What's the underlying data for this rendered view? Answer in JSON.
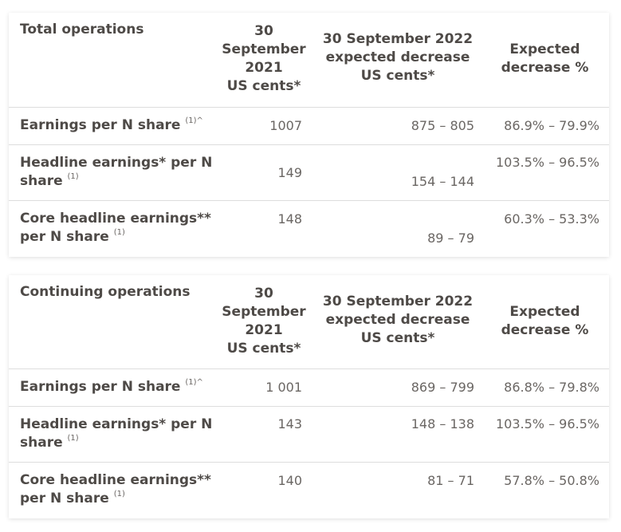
{
  "tables": [
    {
      "heading": "Total operations",
      "col_2021": [
        "30",
        "September",
        "2021",
        "US cents*"
      ],
      "col_2022": [
        "30 September 2022",
        "expected decrease",
        "US cents*"
      ],
      "col_pct": [
        "Expected",
        "decrease %"
      ],
      "rows": [
        {
          "label_l1": "Earnings per N share",
          "label_l2": "",
          "sup": "(1)^",
          "v2021": "1007",
          "v2022": "875 – 805",
          "pct": "86.9% – 79.9%"
        },
        {
          "label_l1": "Headline earnings* per N",
          "label_l2": "share",
          "sup": "(1)",
          "v2021": "149",
          "v2022": "154 – 144",
          "pct": "103.5% – 96.5%"
        },
        {
          "label_l1": "Core headline earnings**",
          "label_l2": "per N share",
          "sup": "(1)",
          "v2021": "148",
          "v2022": "89 – 79",
          "pct": "60.3% – 53.3%"
        }
      ]
    },
    {
      "heading": "Continuing operations",
      "col_2021": [
        "30",
        "September",
        "2021",
        "US cents*"
      ],
      "col_2022": [
        "30 September 2022",
        "expected decrease",
        "US cents*"
      ],
      "col_pct": [
        "Expected",
        "decrease %"
      ],
      "rows": [
        {
          "label_l1": "Earnings per N share",
          "label_l2": "",
          "sup": "(1)^",
          "v2021": "1 001",
          "v2022": "869 – 799",
          "pct": "86.8% – 79.8%"
        },
        {
          "label_l1": "Headline earnings* per N",
          "label_l2": "share",
          "sup": "(1)",
          "v2021": "143",
          "v2022": "148 – 138",
          "pct": "103.5% – 96.5%"
        },
        {
          "label_l1": "Core headline earnings**",
          "label_l2": "per N share",
          "sup": "(1)",
          "v2021": "140",
          "v2022": "81 – 71",
          "pct": "57.8% – 50.8%"
        }
      ]
    }
  ]
}
